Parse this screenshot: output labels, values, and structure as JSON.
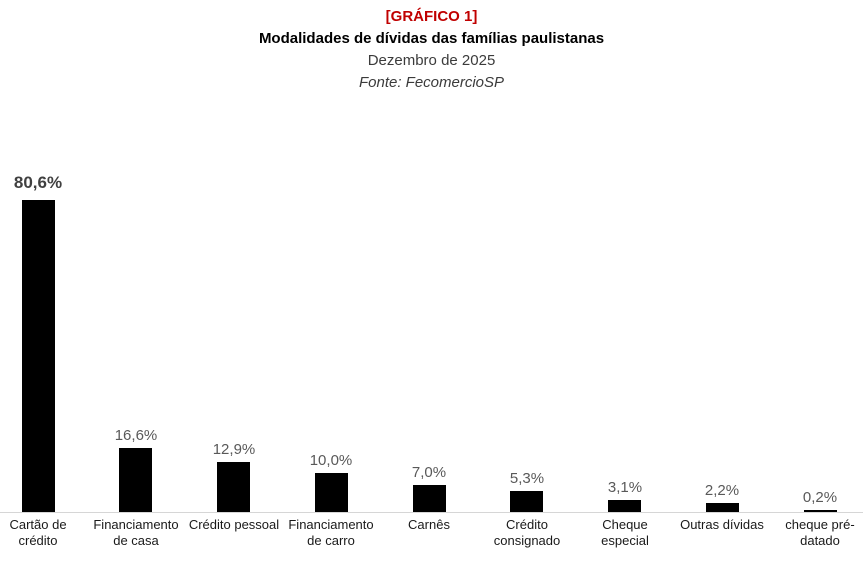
{
  "header": {
    "tag": "[GRÁFICO 1]",
    "tag_color": "#c00000",
    "title": "Modalidades de dívidas das famílias paulistanas",
    "subtitle": "Dezembro de 2025",
    "source": "Fonte: FecomercioSP"
  },
  "chart_data": {
    "type": "bar",
    "title": "Modalidades de dívidas das famílias paulistanas",
    "subtitle": "Dezembro de 2025",
    "source": "Fonte: FecomercioSP",
    "categories": [
      "Cartão de crédito",
      "Financiamento de casa",
      "Crédito pessoal",
      "Financiamento de carro",
      "Carnês",
      "Crédito consignado",
      "Cheque especial",
      "Outras dívidas",
      "cheque pré-datado"
    ],
    "category_display": [
      "Cartão de\ncrédito",
      "Financiamento\nde casa",
      "Crédito pessoal",
      "Financiamento\nde carro",
      "Carnês",
      "Crédito\nconsignado",
      "Cheque\nespecial",
      "Outras dívidas",
      "cheque pré-\ndatado"
    ],
    "values": [
      80.6,
      16.6,
      12.9,
      10.0,
      7.0,
      5.3,
      3.1,
      2.2,
      0.2
    ],
    "value_labels": [
      "80,6%",
      "16,6%",
      "12,9%",
      "10,0%",
      "7,0%",
      "5,3%",
      "3,1%",
      "2,2%",
      "0,2%"
    ],
    "unit": "%",
    "bar_color": "#000000",
    "value_label_color": "#595959",
    "primary_value_label_color": "#404040",
    "axis_color": "#d6d6d6",
    "ylim": [
      0,
      85
    ],
    "grid": false,
    "legend": "none",
    "y_axis_visible": false
  }
}
